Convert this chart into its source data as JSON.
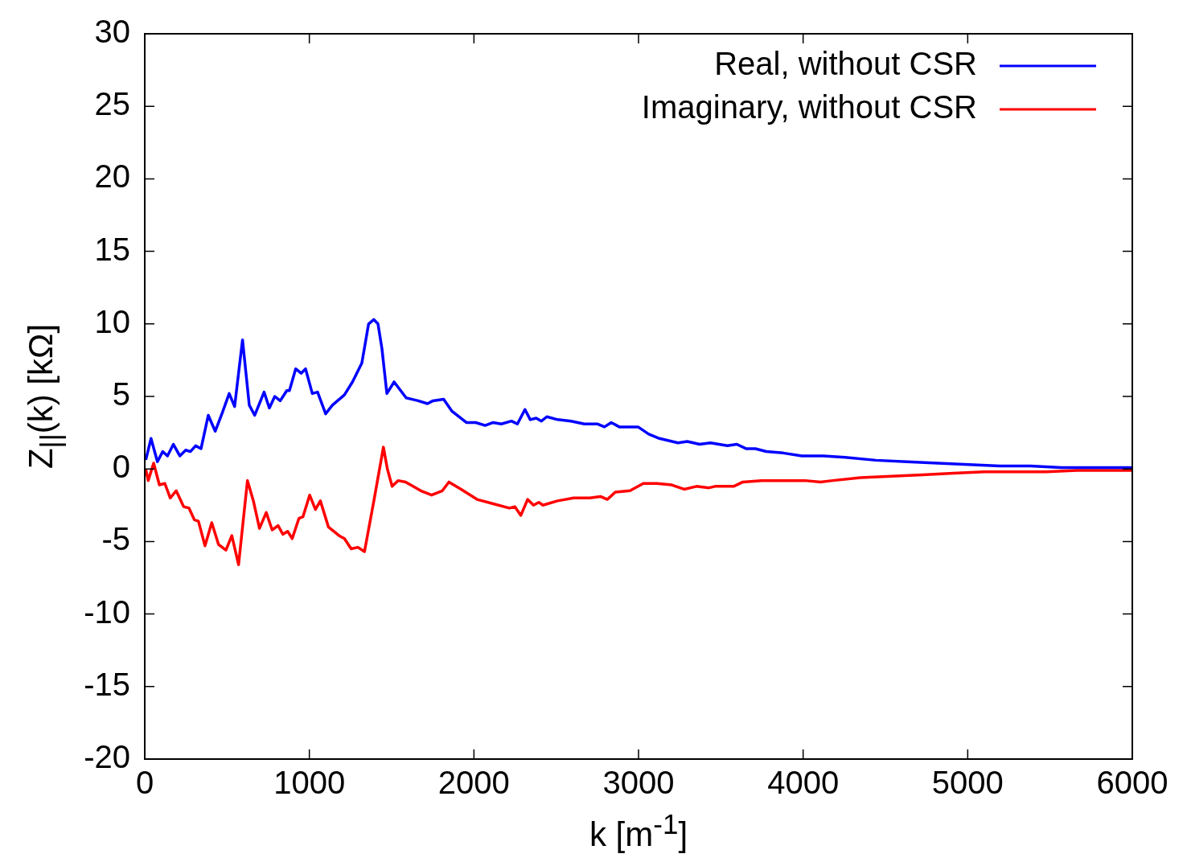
{
  "chart_data": {
    "type": "line",
    "xlabel": "k [m$^{-1}$]",
    "ylabel": "Z$_{||}$(k) [kΩ]",
    "xlim": [
      0,
      6000
    ],
    "ylim": [
      -20,
      30
    ],
    "xticks": [
      0,
      1000,
      2000,
      3000,
      4000,
      5000,
      6000
    ],
    "yticks": [
      -20,
      -15,
      -10,
      -5,
      0,
      5,
      10,
      15,
      20,
      25,
      30
    ],
    "grid": false,
    "legend": "top right",
    "marker": "none",
    "line_style": "solid",
    "series": [
      {
        "name": "Real, without CSR",
        "color": "#0000ff",
        "x": [
          8,
          38,
          77,
          109,
          138,
          174,
          213,
          249,
          277,
          309,
          342,
          386,
          428,
          472,
          513,
          546,
          594,
          635,
          668,
          725,
          757,
          790,
          823,
          863,
          879,
          917,
          950,
          977,
          1018,
          1050,
          1099,
          1140,
          1213,
          1262,
          1319,
          1360,
          1392,
          1417,
          1441,
          1471,
          1515,
          1588,
          1661,
          1718,
          1751,
          1816,
          1865,
          1954,
          2011,
          2068,
          2117,
          2166,
          2228,
          2264,
          2310,
          2342,
          2378,
          2410,
          2443,
          2508,
          2590,
          2671,
          2752,
          2793,
          2834,
          2883,
          2997,
          3062,
          3127,
          3240,
          3296,
          3371,
          3437,
          3540,
          3597,
          3653,
          3710,
          3776,
          3879,
          3992,
          4123,
          4255,
          4442,
          4631,
          4818,
          5007,
          5195,
          5381,
          5570,
          5758,
          6000
        ],
        "values": [
          0.7,
          2.1,
          0.5,
          1.2,
          0.9,
          1.7,
          0.9,
          1.3,
          1.2,
          1.6,
          1.4,
          3.7,
          2.6,
          3.9,
          5.2,
          4.3,
          8.9,
          4.4,
          3.7,
          5.3,
          4.2,
          5.0,
          4.7,
          5.4,
          5.4,
          6.9,
          6.6,
          6.9,
          5.2,
          5.3,
          3.8,
          4.4,
          5.1,
          6.0,
          7.3,
          10.0,
          10.3,
          10.0,
          8.3,
          5.2,
          6.0,
          4.9,
          4.7,
          4.5,
          4.7,
          4.8,
          4.0,
          3.2,
          3.2,
          3.0,
          3.2,
          3.1,
          3.3,
          3.1,
          4.1,
          3.4,
          3.5,
          3.3,
          3.6,
          3.4,
          3.3,
          3.1,
          3.1,
          2.9,
          3.2,
          2.9,
          2.9,
          2.4,
          2.1,
          1.8,
          1.9,
          1.7,
          1.8,
          1.6,
          1.7,
          1.4,
          1.4,
          1.2,
          1.1,
          0.9,
          0.9,
          0.8,
          0.6,
          0.5,
          0.4,
          0.3,
          0.2,
          0.2,
          0.1,
          0.1,
          0.1
        ]
      },
      {
        "name": "Imaginary, without CSR",
        "color": "#ff0000",
        "x": [
          8,
          21,
          54,
          89,
          122,
          155,
          191,
          236,
          269,
          301,
          326,
          366,
          407,
          448,
          493,
          529,
          570,
          624,
          660,
          697,
          738,
          774,
          810,
          839,
          868,
          896,
          937,
          961,
          1002,
          1037,
          1067,
          1116,
          1181,
          1213,
          1254,
          1295,
          1335,
          1392,
          1450,
          1474,
          1503,
          1539,
          1585,
          1677,
          1743,
          1808,
          1848,
          1922,
          2019,
          2117,
          2215,
          2248,
          2285,
          2326,
          2362,
          2394,
          2419,
          2508,
          2606,
          2704,
          2769,
          2810,
          2859,
          2948,
          3029,
          3111,
          3202,
          3277,
          3352,
          3428,
          3465,
          3578,
          3634,
          3747,
          3879,
          4010,
          4104,
          4180,
          4349,
          4537,
          4725,
          4913,
          5100,
          5288,
          5476,
          5664,
          5852,
          6000
        ],
        "values": [
          -0.1,
          -0.8,
          0.4,
          -1.1,
          -1.0,
          -2.0,
          -1.5,
          -2.6,
          -2.7,
          -3.5,
          -3.6,
          -5.3,
          -3.7,
          -5.2,
          -5.6,
          -4.6,
          -6.6,
          -0.8,
          -2.2,
          -4.1,
          -3.0,
          -4.2,
          -3.9,
          -4.5,
          -4.3,
          -4.8,
          -3.4,
          -3.3,
          -1.8,
          -2.8,
          -2.2,
          -4.0,
          -4.6,
          -4.8,
          -5.5,
          -5.4,
          -5.7,
          -2.2,
          1.5,
          0.0,
          -1.2,
          -0.8,
          -0.9,
          -1.5,
          -1.8,
          -1.5,
          -0.9,
          -1.4,
          -2.1,
          -2.4,
          -2.7,
          -2.6,
          -3.2,
          -2.1,
          -2.5,
          -2.3,
          -2.5,
          -2.2,
          -2.0,
          -2.0,
          -1.9,
          -2.1,
          -1.6,
          -1.5,
          -1.0,
          -1.0,
          -1.1,
          -1.4,
          -1.2,
          -1.3,
          -1.2,
          -1.2,
          -0.9,
          -0.8,
          -0.8,
          -0.8,
          -0.9,
          -0.8,
          -0.6,
          -0.5,
          -0.4,
          -0.3,
          -0.2,
          -0.2,
          -0.2,
          -0.1,
          -0.1,
          -0.1
        ]
      }
    ]
  }
}
